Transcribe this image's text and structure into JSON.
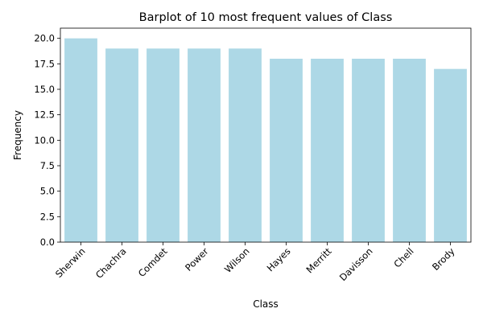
{
  "chart_data": {
    "type": "bar",
    "title": "Barplot of 10 most frequent values of Class",
    "xlabel": "Class",
    "ylabel": "Frequency",
    "categories": [
      "Sherwin",
      "Chachra",
      "Comdet",
      "Power",
      "Wilson",
      "Hayes",
      "Merritt",
      "Davisson",
      "Chell",
      "Brody"
    ],
    "values": [
      20,
      19,
      19,
      19,
      19,
      18,
      18,
      18,
      18,
      17
    ],
    "ylim": [
      0,
      21
    ],
    "yticks": [
      "0.0",
      "2.5",
      "5.0",
      "7.5",
      "10.0",
      "12.5",
      "15.0",
      "17.5",
      "20.0"
    ],
    "bar_color": "#add8e6",
    "grid": false,
    "legend": "none"
  }
}
